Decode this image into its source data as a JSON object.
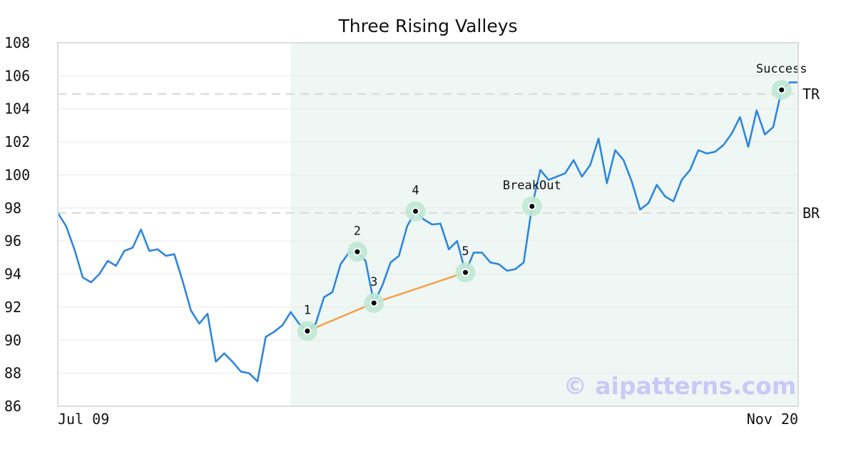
{
  "chart_data": {
    "type": "line",
    "title": "Three Rising Valleys",
    "ylim": [
      86,
      108
    ],
    "y_ticks": [
      "86",
      "88",
      "90",
      "92",
      "94",
      "96",
      "98",
      "100",
      "102",
      "104",
      "106",
      "108"
    ],
    "x_tick_labels": [
      "Jul 09",
      "Nov 20"
    ],
    "grid": "horizontal",
    "watermark": "© aipatterns.com",
    "series": [
      {
        "color": "#2e86de",
        "values": [
          97.7,
          96.9,
          95.5,
          93.8,
          93.5,
          94.0,
          94.8,
          94.5,
          95.4,
          95.6,
          96.7,
          95.4,
          95.5,
          95.1,
          95.2,
          93.6,
          91.8,
          91.0,
          91.6,
          88.7,
          89.2,
          88.7,
          88.1,
          88.0,
          87.5,
          90.2,
          90.5,
          90.9,
          91.7,
          91.0,
          90.55,
          91.0,
          92.6,
          92.9,
          94.6,
          95.3,
          95.35,
          94.8,
          92.25,
          93.3,
          94.7,
          95.1,
          96.9,
          97.8,
          97.3,
          97.0,
          97.05,
          95.5,
          96.0,
          94.1,
          95.3,
          95.3,
          94.7,
          94.6,
          94.2,
          94.3,
          94.7,
          98.1,
          100.3,
          99.7,
          99.9,
          100.1,
          100.9,
          99.9,
          100.6,
          102.2,
          99.5,
          101.5,
          100.9,
          99.6,
          97.9,
          98.3,
          99.4,
          98.7,
          98.4,
          99.7,
          100.3,
          101.5,
          101.3,
          101.4,
          101.8,
          102.5,
          103.5,
          101.7,
          103.9,
          102.45,
          102.9,
          105.15,
          105.6,
          105.6
        ]
      },
      {
        "name": "support",
        "color": "#f0a04b",
        "points": [
          [
            30,
            90.55
          ],
          [
            38,
            92.25
          ],
          [
            49,
            94.1
          ]
        ]
      }
    ],
    "shaded_region": {
      "x_start": 28,
      "x_end": 89,
      "color": "#eef7f3"
    },
    "levels": [
      {
        "label": "TR",
        "value": 104.9
      },
      {
        "label": "BR",
        "value": 97.7
      }
    ],
    "annotations": [
      {
        "label": "1",
        "x": 30,
        "y": 90.55
      },
      {
        "label": "2",
        "x": 36,
        "y": 95.35
      },
      {
        "label": "3",
        "x": 38,
        "y": 92.25
      },
      {
        "label": "4",
        "x": 43,
        "y": 97.8
      },
      {
        "label": "5",
        "x": 49,
        "y": 94.1
      },
      {
        "label": "BreakOut",
        "x": 57,
        "y": 98.1
      },
      {
        "label": "Success",
        "x": 87,
        "y": 105.15
      }
    ]
  }
}
